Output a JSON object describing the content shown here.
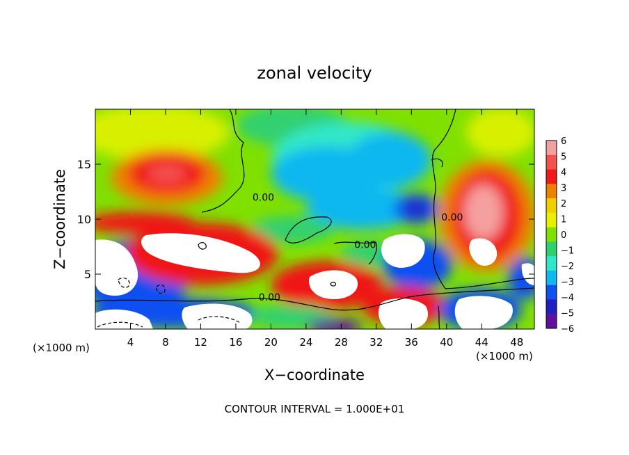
{
  "chart_data": {
    "type": "heatmap",
    "title": "zonal velocity",
    "xlabel": "X−coordinate",
    "ylabel": "Z−coordinate",
    "x_unit_left": "(×1000 m)",
    "x_unit_right": "(×1000 m)",
    "footer": "CONTOUR INTERVAL = 1.000E+01",
    "xlim": [
      0,
      50
    ],
    "ylim": [
      0,
      20
    ],
    "x_ticks": [
      4,
      8,
      12,
      16,
      20,
      24,
      28,
      32,
      36,
      40,
      44,
      48
    ],
    "y_ticks": [
      5,
      10,
      15
    ],
    "colorbar": {
      "levels": [
        6,
        5,
        4,
        3,
        2,
        1,
        0,
        -1,
        -2,
        -3,
        -4,
        -5,
        -6
      ],
      "labels": [
        "6",
        "5",
        "4",
        "3",
        "2",
        "1",
        "0",
        "−1",
        "−2",
        "−3",
        "−4",
        "−5",
        "−6"
      ],
      "colors": [
        "#f5a0a0",
        "#f55050",
        "#f01818",
        "#f08000",
        "#f0d000",
        "#e8f000",
        "#80e000",
        "#30d070",
        "#30e8c8",
        "#10b8f0",
        "#1050f0",
        "#2020c0",
        "#6010a0"
      ]
    },
    "contour_labels": [
      {
        "text": "0.00",
        "x": 17.9,
        "y": 12.0
      },
      {
        "text": "0.00",
        "x": 29.5,
        "y": 7.7
      },
      {
        "text": "0.00",
        "x": 39.4,
        "y": 10.2
      },
      {
        "text": "0.00",
        "x": 18.6,
        "y": 2.9
      }
    ]
  }
}
